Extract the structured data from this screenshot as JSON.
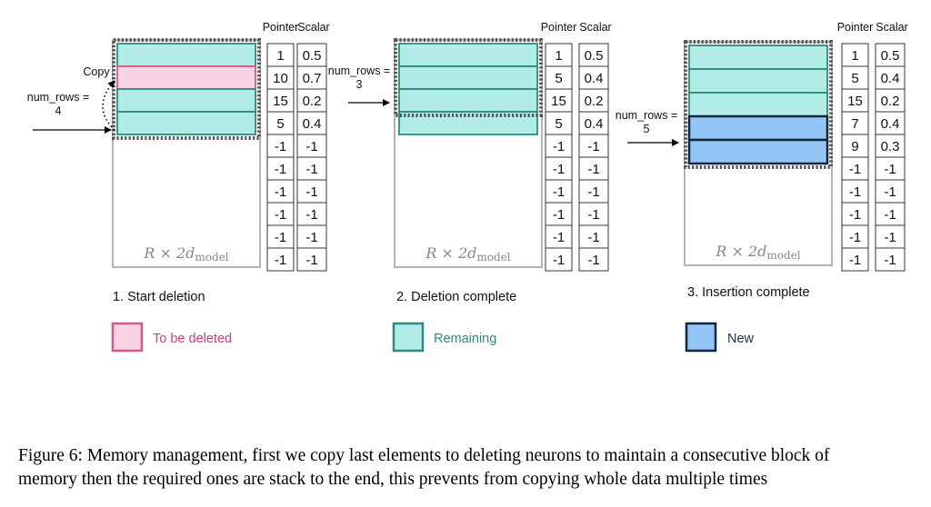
{
  "headers": {
    "pointer": "Pointer",
    "scalar": "Scalar"
  },
  "panels": [
    {
      "id": "panel-start-deletion",
      "title": "1. Start deletion",
      "memory_label": "R × 2d",
      "memory_label_sub": "model",
      "rows": [
        {
          "state": "remaining",
          "pointer": "1",
          "scalar": "0.5"
        },
        {
          "state": "to_be_deleted",
          "pointer": "10",
          "scalar": "0.7"
        },
        {
          "state": "remaining",
          "pointer": "15",
          "scalar": "0.2"
        },
        {
          "state": "remaining",
          "pointer": "5",
          "scalar": "0.4"
        },
        {
          "state": "empty",
          "pointer": "-1",
          "scalar": "-1"
        },
        {
          "state": "empty",
          "pointer": "-1",
          "scalar": "-1"
        },
        {
          "state": "empty",
          "pointer": "-1",
          "scalar": "-1"
        },
        {
          "state": "empty",
          "pointer": "-1",
          "scalar": "-1"
        },
        {
          "state": "empty",
          "pointer": "-1",
          "scalar": "-1"
        },
        {
          "state": "empty",
          "pointer": "-1",
          "scalar": "-1"
        }
      ],
      "num_rows_label": "num_rows =",
      "num_rows_value": "4",
      "copy_label": "Copy"
    },
    {
      "id": "panel-deletion-complete",
      "title": "2. Deletion complete",
      "memory_label": "R × 2d",
      "memory_label_sub": "model",
      "rows": [
        {
          "state": "remaining",
          "pointer": "1",
          "scalar": "0.5"
        },
        {
          "state": "remaining",
          "pointer": "5",
          "scalar": "0.4"
        },
        {
          "state": "remaining",
          "pointer": "15",
          "scalar": "0.2"
        },
        {
          "state": "remaining",
          "pointer": "5",
          "scalar": "0.4"
        },
        {
          "state": "empty",
          "pointer": "-1",
          "scalar": "-1"
        },
        {
          "state": "empty",
          "pointer": "-1",
          "scalar": "-1"
        },
        {
          "state": "empty",
          "pointer": "-1",
          "scalar": "-1"
        },
        {
          "state": "empty",
          "pointer": "-1",
          "scalar": "-1"
        },
        {
          "state": "empty",
          "pointer": "-1",
          "scalar": "-1"
        },
        {
          "state": "empty",
          "pointer": "-1",
          "scalar": "-1"
        }
      ],
      "num_rows_label": "num_rows =",
      "num_rows_value": "3"
    },
    {
      "id": "panel-insertion-complete",
      "title": "3. Insertion complete",
      "memory_label": "R × 2d",
      "memory_label_sub": "model",
      "rows": [
        {
          "state": "remaining",
          "pointer": "1",
          "scalar": "0.5"
        },
        {
          "state": "remaining",
          "pointer": "5",
          "scalar": "0.4"
        },
        {
          "state": "remaining",
          "pointer": "15",
          "scalar": "0.2"
        },
        {
          "state": "new",
          "pointer": "7",
          "scalar": "0.4"
        },
        {
          "state": "new",
          "pointer": "9",
          "scalar": "0.3"
        },
        {
          "state": "empty",
          "pointer": "-1",
          "scalar": "-1"
        },
        {
          "state": "empty",
          "pointer": "-1",
          "scalar": "-1"
        },
        {
          "state": "empty",
          "pointer": "-1",
          "scalar": "-1"
        },
        {
          "state": "empty",
          "pointer": "-1",
          "scalar": "-1"
        },
        {
          "state": "empty",
          "pointer": "-1",
          "scalar": "-1"
        }
      ],
      "num_rows_label": "num_rows =",
      "num_rows_value": "5"
    }
  ],
  "legend": [
    {
      "key": "to_be_deleted",
      "label": "To be deleted",
      "fill": "#f8d3e3",
      "stroke": "#d8588c",
      "text_color": "#c73f7e"
    },
    {
      "key": "remaining",
      "label": "Remaining",
      "fill": "#b2ece9",
      "stroke": "#2e8a80",
      "text_color": "#2e8a80"
    },
    {
      "key": "new",
      "label": "New",
      "fill": "#93c6f7",
      "stroke": "#102540",
      "text_color": "#1a2d4a"
    }
  ],
  "colors": {
    "memory_border": "#b5b5b5",
    "dotted_border": "#555555",
    "cell_border": "#333333"
  },
  "caption_line1": "Figure 6: Memory management, first we copy last elements to deleting neurons to maintain a consecutive block of",
  "caption_line2": "memory then the required ones are stack to the end, this prevents from copying whole data multiple times"
}
